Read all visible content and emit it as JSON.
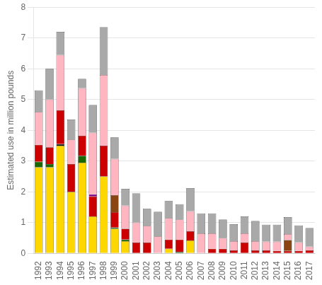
{
  "chart_data": {
    "type": "bar",
    "stacked": true,
    "categories": [
      "1992",
      "1993",
      "1994",
      "1995",
      "1996",
      "1997",
      "1998",
      "1999",
      "2000",
      "2001",
      "2002",
      "2003",
      "2004",
      "2005",
      "2006",
      "2007",
      "2008",
      "2009",
      "2010",
      "2011",
      "2012",
      "2013",
      "2014",
      "2015",
      "2016",
      "2017"
    ],
    "series": [
      {
        "color": "#FFD700",
        "values": [
          2.8,
          2.8,
          3.5,
          2.0,
          2.95,
          1.2,
          2.5,
          0.8,
          0.4,
          0.0,
          0.0,
          0.0,
          0.15,
          0.0,
          0.42,
          0.0,
          0.0,
          0.0,
          0.0,
          0.0,
          0.0,
          0.0,
          0.0,
          0.0,
          0.0,
          0.0
        ]
      },
      {
        "color": "#1a6600",
        "values": [
          0.18,
          0.1,
          0.0,
          0.0,
          0.22,
          0.0,
          0.0,
          0.04,
          0.05,
          0.0,
          0.0,
          0.0,
          0.0,
          0.05,
          0.0,
          0.0,
          0.0,
          0.0,
          0.0,
          0.0,
          0.0,
          0.0,
          0.0,
          0.0,
          0.0,
          0.0
        ]
      },
      {
        "color": "#111111",
        "values": [
          0.0,
          0.0,
          0.05,
          0.0,
          0.0,
          0.0,
          0.0,
          0.0,
          0.0,
          0.0,
          0.0,
          0.0,
          0.0,
          0.0,
          0.0,
          0.0,
          0.0,
          0.0,
          0.0,
          0.0,
          0.0,
          0.0,
          0.0,
          0.0,
          0.0,
          0.0
        ]
      },
      {
        "color": "#CC0000",
        "values": [
          0.55,
          0.55,
          1.1,
          0.9,
          0.65,
          0.65,
          1.0,
          0.5,
          0.35,
          0.35,
          0.35,
          0.0,
          0.3,
          0.4,
          0.3,
          0.0,
          0.15,
          0.15,
          0.1,
          0.35,
          0.1,
          0.1,
          0.08,
          0.08,
          0.08,
          0.1
        ]
      },
      {
        "color": "#8B4513",
        "values": [
          0.0,
          0.0,
          0.0,
          0.0,
          0.0,
          0.0,
          0.0,
          0.55,
          0.0,
          0.0,
          0.0,
          0.0,
          0.0,
          0.0,
          0.0,
          0.0,
          0.0,
          0.0,
          0.0,
          0.0,
          0.0,
          0.0,
          0.0,
          0.35,
          0.0,
          0.0
        ]
      },
      {
        "color": "#800080",
        "values": [
          0.0,
          0.0,
          0.0,
          0.0,
          0.0,
          0.07,
          0.0,
          0.0,
          0.0,
          0.0,
          0.0,
          0.0,
          0.0,
          0.0,
          0.0,
          0.0,
          0.0,
          0.0,
          0.0,
          0.0,
          0.0,
          0.0,
          0.0,
          0.0,
          0.0,
          0.0
        ]
      },
      {
        "color": "#FFB6C1",
        "values": [
          1.07,
          1.55,
          1.8,
          0.8,
          1.55,
          2.0,
          2.3,
          1.18,
          0.75,
          0.65,
          0.55,
          0.55,
          0.7,
          0.65,
          0.65,
          0.65,
          0.5,
          0.35,
          0.3,
          0.3,
          0.3,
          0.28,
          0.3,
          0.2,
          0.28,
          0.12
        ]
      },
      {
        "color": "#A9A9A9",
        "values": [
          0.7,
          1.0,
          0.75,
          0.65,
          0.3,
          0.9,
          1.55,
          0.7,
          0.55,
          0.95,
          0.55,
          0.8,
          0.55,
          0.5,
          0.75,
          0.65,
          0.65,
          0.6,
          0.55,
          0.55,
          0.65,
          0.55,
          0.55,
          0.55,
          0.55,
          0.6
        ]
      }
    ],
    "ylabel": "Estimated use in million pounds",
    "ylim": [
      0,
      8
    ],
    "yticks": [
      0,
      1,
      2,
      3,
      4,
      5,
      6,
      7,
      8
    ],
    "grid": true
  }
}
